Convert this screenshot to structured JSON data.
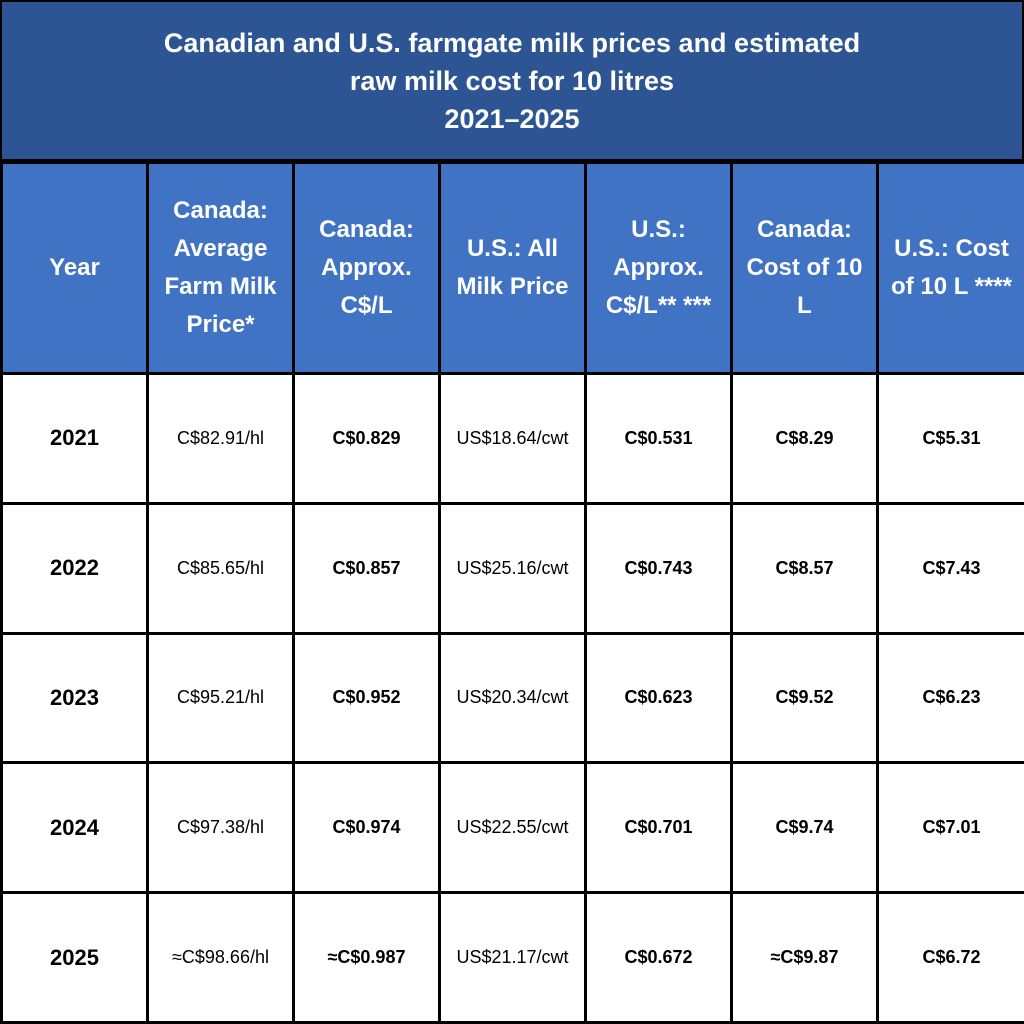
{
  "title": {
    "line1": "Canadian and U.S. farmgate milk prices and estimated",
    "line2": "raw milk cost for 10 litres",
    "line3": "2021–2025"
  },
  "chart_data": {
    "type": "table",
    "columns": [
      "Year",
      "Canada: Average Farm Milk Price*",
      "Canada: Approx. C$/L",
      "U.S.: All Milk Price",
      "U.S.: Approx. C$/L** ***",
      "Canada: Cost of 10 L",
      "U.S.: Cost of 10 L ****"
    ],
    "rows": [
      [
        "2021",
        "C$82.91/hl",
        "C$0.829",
        "US$18.64/cwt",
        "C$0.531",
        "C$8.29",
        "C$5.31"
      ],
      [
        "2022",
        "C$85.65/hl",
        "C$0.857",
        "US$25.16/cwt",
        "C$0.743",
        "C$8.57",
        "C$7.43"
      ],
      [
        "2023",
        "C$95.21/hl",
        "C$0.952",
        "US$20.34/cwt",
        "C$0.623",
        "C$9.52",
        "C$6.23"
      ],
      [
        "2024",
        "C$97.38/hl",
        "C$0.974",
        "US$22.55/cwt",
        "C$0.701",
        "C$9.74",
        "C$7.01"
      ],
      [
        "2025",
        "≈C$98.66/hl",
        "≈C$0.987",
        "US$21.17/cwt",
        "C$0.672",
        "≈C$9.87",
        "C$6.72"
      ]
    ],
    "colors": {
      "title_background": "#2e5593",
      "header_background": "#4173c4",
      "cell_background": "#ffffff",
      "border": "#000000"
    }
  }
}
